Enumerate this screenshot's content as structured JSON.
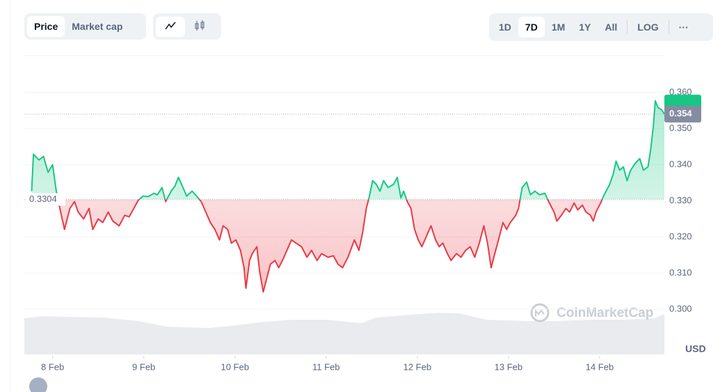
{
  "toolbar": {
    "price": "Price",
    "market_cap": "Market cap",
    "ranges": [
      "1D",
      "7D",
      "1M",
      "1Y",
      "All"
    ],
    "log": "LOG",
    "more": "···"
  },
  "chart_data": {
    "type": "line",
    "x": [
      7.77,
      7.79,
      7.85,
      7.9,
      7.95,
      8.0,
      8.04,
      8.08,
      8.13,
      8.19,
      8.24,
      8.28,
      8.34,
      8.4,
      8.44,
      8.5,
      8.55,
      8.61,
      8.66,
      8.73,
      8.79,
      8.84,
      8.89,
      8.94,
      8.99,
      9.05,
      9.11,
      9.15,
      9.2,
      9.24,
      9.3,
      9.34,
      9.38,
      9.43,
      9.47,
      9.53,
      9.58,
      9.63,
      9.68,
      9.73,
      9.78,
      9.83,
      9.87,
      9.92,
      9.96,
      10.01,
      10.06,
      10.1,
      10.12,
      10.16,
      10.19,
      10.24,
      10.27,
      10.31,
      10.35,
      10.39,
      10.44,
      10.48,
      10.53,
      10.57,
      10.62,
      10.67,
      10.73,
      10.79,
      10.84,
      10.9,
      10.95,
      11.02,
      11.08,
      11.13,
      11.18,
      11.24,
      11.31,
      11.36,
      11.4,
      11.44,
      11.47,
      11.51,
      11.55,
      11.59,
      11.63,
      11.68,
      11.74,
      11.78,
      11.82,
      11.85,
      11.89,
      11.93,
      11.97,
      12.01,
      12.05,
      12.1,
      12.15,
      12.2,
      12.24,
      12.28,
      12.33,
      12.37,
      12.43,
      12.48,
      12.53,
      12.58,
      12.63,
      12.68,
      12.73,
      12.77,
      12.81,
      12.85,
      12.89,
      12.94,
      12.98,
      13.02,
      13.08,
      13.11,
      13.15,
      13.2,
      13.24,
      13.29,
      13.34,
      13.4,
      13.44,
      13.5,
      13.53,
      13.58,
      13.63,
      13.67,
      13.72,
      13.76,
      13.81,
      13.85,
      13.9,
      13.93,
      13.96,
      14.01,
      14.05,
      14.11,
      14.15,
      14.18,
      14.22,
      14.26,
      14.3,
      14.34,
      14.39,
      14.44,
      14.48,
      14.53,
      14.56,
      14.59,
      14.61,
      14.64,
      14.68,
      14.71
    ],
    "values": [
      0.3327,
      0.3429,
      0.3413,
      0.3423,
      0.3379,
      0.34,
      0.3327,
      0.3279,
      0.3221,
      0.3279,
      0.3298,
      0.3269,
      0.325,
      0.3279,
      0.3221,
      0.325,
      0.324,
      0.3269,
      0.3244,
      0.3231,
      0.326,
      0.3256,
      0.3279,
      0.3302,
      0.3313,
      0.3312,
      0.3321,
      0.3317,
      0.3337,
      0.3298,
      0.3327,
      0.334,
      0.3365,
      0.3337,
      0.3313,
      0.3327,
      0.3313,
      0.3298,
      0.3269,
      0.324,
      0.3221,
      0.3192,
      0.3231,
      0.3221,
      0.3183,
      0.3192,
      0.3163,
      0.3115,
      0.3058,
      0.3135,
      0.3154,
      0.3173,
      0.3106,
      0.3048,
      0.3087,
      0.3125,
      0.3135,
      0.3115,
      0.314,
      0.3163,
      0.3192,
      0.3183,
      0.3173,
      0.3144,
      0.3163,
      0.3135,
      0.3154,
      0.3144,
      0.3148,
      0.3125,
      0.3115,
      0.3144,
      0.3192,
      0.3163,
      0.3212,
      0.3279,
      0.3308,
      0.3356,
      0.3346,
      0.3327,
      0.3356,
      0.3337,
      0.3346,
      0.3365,
      0.3308,
      0.3327,
      0.3298,
      0.3279,
      0.3221,
      0.3192,
      0.3173,
      0.3202,
      0.3231,
      0.3192,
      0.3173,
      0.3183,
      0.3154,
      0.3135,
      0.3154,
      0.3144,
      0.3163,
      0.3173,
      0.3144,
      0.3183,
      0.3231,
      0.3183,
      0.3115,
      0.3154,
      0.3192,
      0.324,
      0.3221,
      0.324,
      0.326,
      0.3279,
      0.3337,
      0.3352,
      0.3317,
      0.3327,
      0.3317,
      0.3321,
      0.3298,
      0.3269,
      0.3244,
      0.326,
      0.3279,
      0.3269,
      0.3294,
      0.3275,
      0.3288,
      0.3269,
      0.326,
      0.3244,
      0.3269,
      0.3294,
      0.3317,
      0.3346,
      0.3375,
      0.341,
      0.3385,
      0.3394,
      0.3356,
      0.3385,
      0.3404,
      0.3417,
      0.3385,
      0.3394,
      0.3442,
      0.351,
      0.3577,
      0.3558,
      0.3552,
      0.354
    ],
    "color_up": "#16c784",
    "color_down": "#ea3943",
    "baseline": 0.3304,
    "current": 0.354,
    "xlim": [
      7.69,
      14.71
    ],
    "xticks": [
      {
        "value": 8,
        "label": "8 Feb"
      },
      {
        "value": 9,
        "label": "9 Feb"
      },
      {
        "value": 10,
        "label": "10 Feb"
      },
      {
        "value": 11,
        "label": "11 Feb"
      },
      {
        "value": 12,
        "label": "12 Feb"
      },
      {
        "value": 13,
        "label": "13 Feb"
      },
      {
        "value": 14,
        "label": "14 Feb"
      }
    ],
    "ylim": [
      0.298,
      0.37
    ],
    "yticks": [
      {
        "value": 0.3,
        "label": "0.300"
      },
      {
        "value": 0.31,
        "label": "0.310"
      },
      {
        "value": 0.32,
        "label": "0.320"
      },
      {
        "value": 0.33,
        "label": "0.330"
      },
      {
        "value": 0.34,
        "label": "0.340"
      },
      {
        "value": 0.35,
        "label": "0.350"
      },
      {
        "value": 0.36,
        "label": "0.360"
      }
    ],
    "grid": true,
    "currency": "USD",
    "watermark": "CoinMarketCap"
  }
}
